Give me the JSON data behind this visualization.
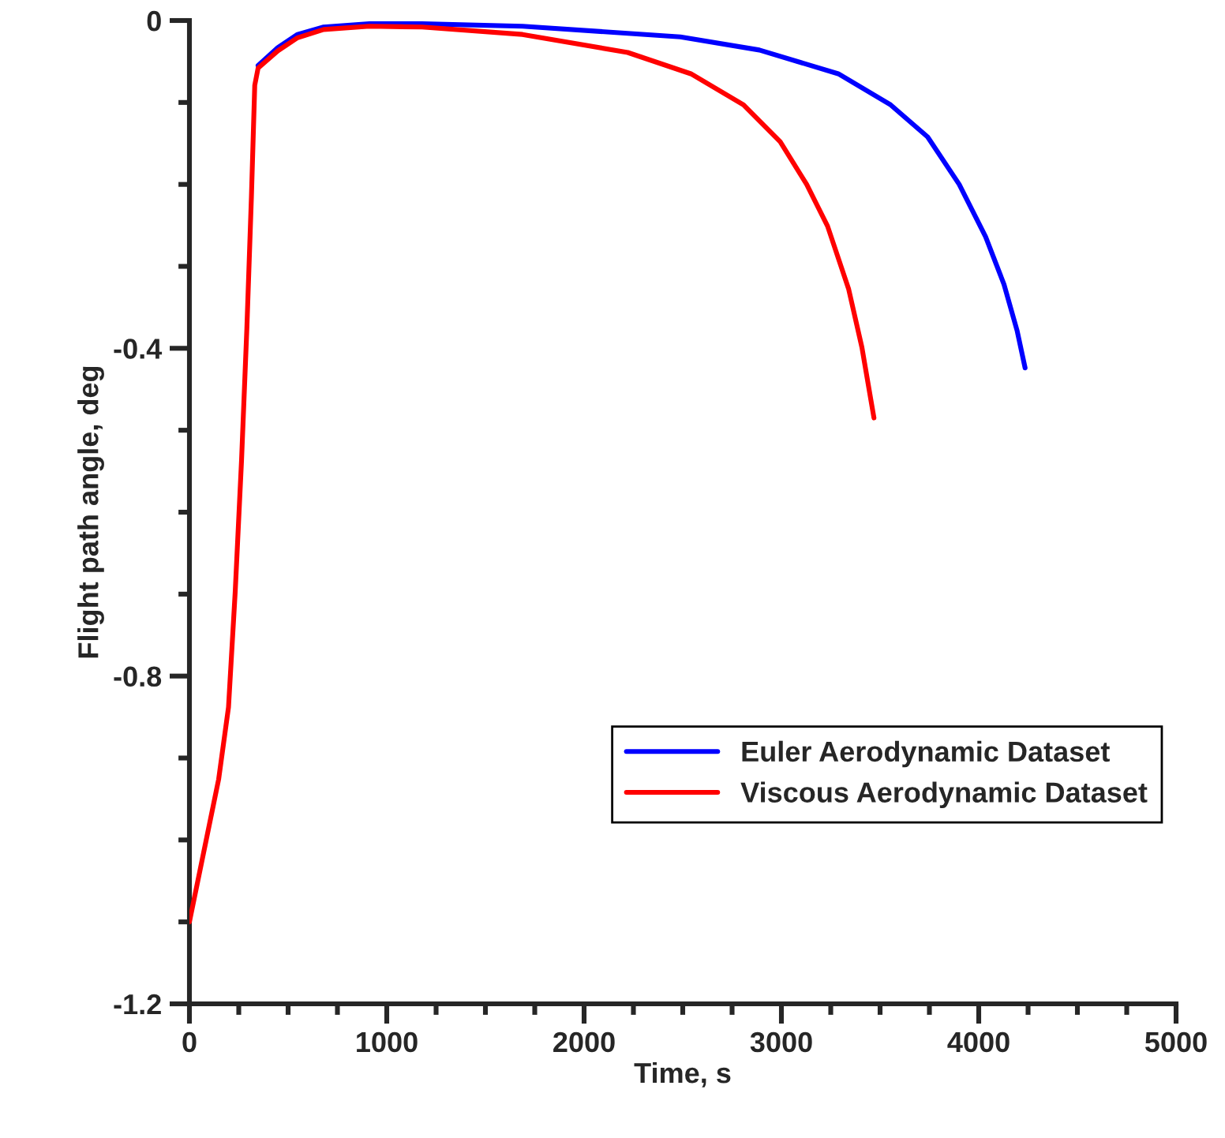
{
  "chart_data": {
    "type": "line",
    "xlabel": "Time, s",
    "ylabel": "Flight path angle, deg",
    "xlim": [
      0,
      5000
    ],
    "xticks": [
      0,
      1000,
      2000,
      3000,
      4000,
      5000
    ],
    "ylim": [
      -1.2,
      0
    ],
    "yticks": [
      -1.2,
      {
        "value": -0.8,
        "label": "-0.8"
      },
      {
        "value": -0.4,
        "label": "-0.4"
      },
      0
    ],
    "grid": false,
    "legend": "bottom right",
    "line_style": "solid",
    "marker": "none",
    "series": [
      {
        "name": "Euler Aerodynamic Dataset",
        "color": "#0000ff",
        "x": [
          348,
          448,
          548,
          680,
          912,
          1180,
          1688,
          2488,
          2888,
          3288,
          3554,
          3741,
          3901,
          4035,
          4128,
          4195,
          4235
        ],
        "values": [
          -0.055,
          -0.033,
          -0.017,
          -0.008,
          -0.004,
          -0.004,
          -0.007,
          -0.02,
          -0.036,
          -0.065,
          -0.103,
          -0.142,
          -0.2,
          -0.264,
          -0.322,
          -0.379,
          -0.424
        ]
      },
      {
        "name": "Viscous Aerodynamic Dataset",
        "color": "#ff0000",
        "x": [
          0,
          148,
          198,
          232,
          264,
          291,
          314,
          331,
          348,
          448,
          548,
          680,
          912,
          1180,
          1688,
          2221,
          2541,
          2808,
          2994,
          3128,
          3234,
          3341,
          3408,
          3469
        ],
        "values": [
          -1.1,
          -0.926,
          -0.838,
          -0.697,
          -0.537,
          -0.376,
          -0.216,
          -0.079,
          -0.058,
          -0.037,
          -0.021,
          -0.011,
          -0.007,
          -0.008,
          -0.017,
          -0.039,
          -0.065,
          -0.103,
          -0.148,
          -0.2,
          -0.251,
          -0.328,
          -0.399,
          -0.485
        ]
      }
    ]
  }
}
